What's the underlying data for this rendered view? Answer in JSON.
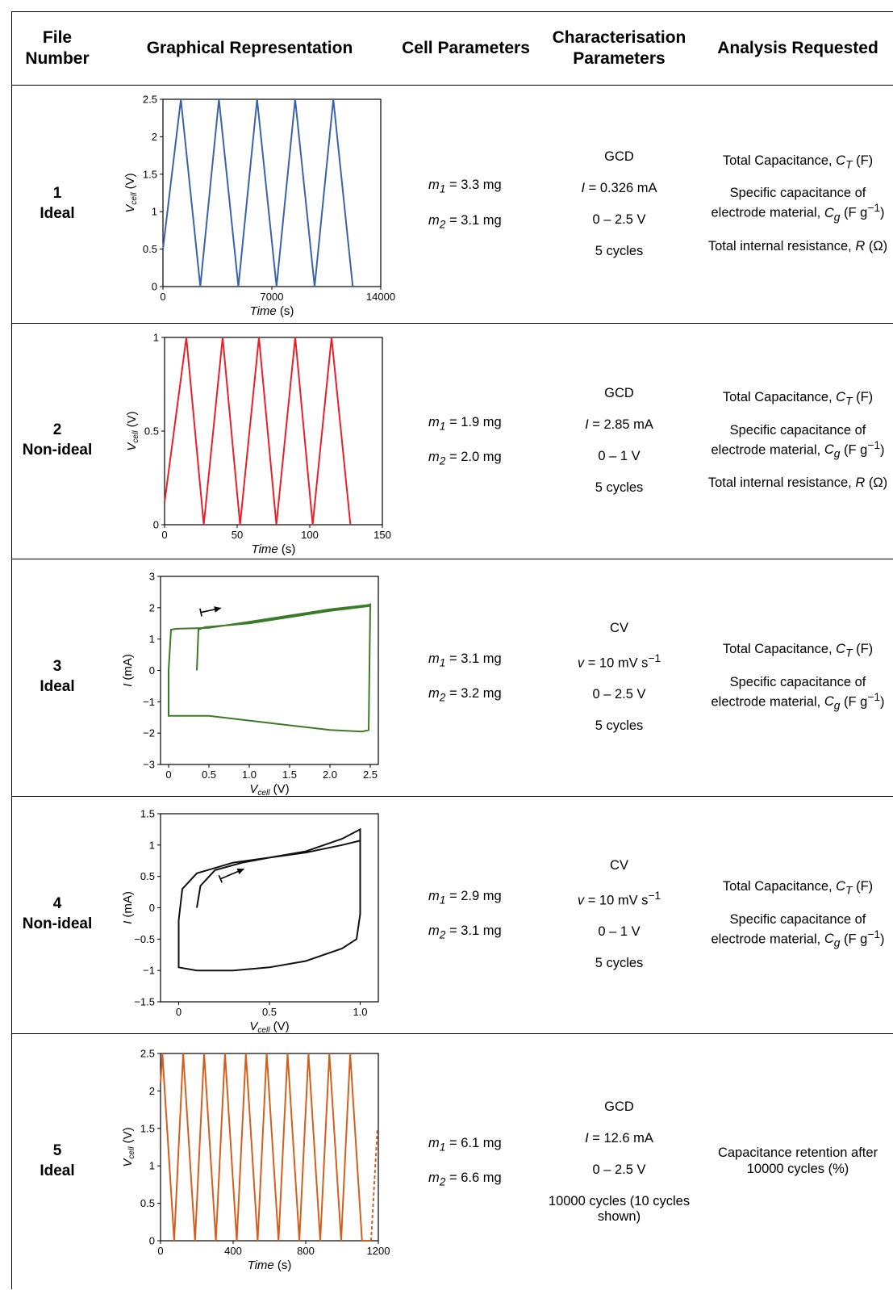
{
  "headers": {
    "file_number": "File Number",
    "graphical": "Graphical Representation",
    "cell": "Cell Parameters",
    "characterisation": "Characterisation Parameters",
    "analysis": "Analysis Requested"
  },
  "rows": [
    {
      "number": "1",
      "label": "Ideal",
      "cell": [
        "m1 = 3.3 mg",
        "m2 = 3.1 mg"
      ],
      "characterisation": [
        "GCD",
        "I = 0.326 mA",
        "0 – 2.5 V",
        "5 cycles"
      ],
      "analysis": [
        "Total Capacitance, CT (F)",
        "Specific capacitance of electrode material, Cg (F g−1)",
        "Total internal resistance, R (Ω)"
      ]
    },
    {
      "number": "2",
      "label": "Non-ideal",
      "cell": [
        "m1 = 1.9 mg",
        "m2 = 2.0 mg"
      ],
      "characterisation": [
        "GCD",
        "I = 2.85 mA",
        "0 – 1 V",
        "5 cycles"
      ],
      "analysis": [
        "Total Capacitance, CT (F)",
        "Specific capacitance of electrode material, Cg (F g−1)",
        "Total internal resistance, R (Ω)"
      ]
    },
    {
      "number": "3",
      "label": "Ideal",
      "cell": [
        "m1 = 3.1 mg",
        "m2 = 3.2 mg"
      ],
      "characterisation": [
        "CV",
        "v = 10 mV s−1",
        "0 – 2.5 V",
        "5 cycles"
      ],
      "analysis": [
        "Total Capacitance, CT (F)",
        "Specific capacitance of electrode material, Cg (F g−1)"
      ]
    },
    {
      "number": "4",
      "label": "Non-ideal",
      "cell": [
        "m1 = 2.9 mg",
        "m2 = 3.1 mg"
      ],
      "characterisation": [
        "CV",
        "v = 10 mV s−1",
        "0 – 1 V",
        "5 cycles"
      ],
      "analysis": [
        "Total Capacitance, CT (F)",
        "Specific capacitance of electrode material, Cg (F g−1)"
      ]
    },
    {
      "number": "5",
      "label": "Ideal",
      "cell": [
        "m1 = 6.1 mg",
        "m2 = 6.6 mg"
      ],
      "characterisation": [
        "GCD",
        "I = 12.6 mA",
        "0 – 2.5 V",
        "10000 cycles (10 cycles shown)"
      ],
      "analysis": [
        "Capacitance retention after 10000 cycles (%)"
      ]
    }
  ],
  "chart_data": [
    {
      "type": "line",
      "color": "#3a63a8",
      "xlabel": "Time (s)",
      "ylabel": "Vcell (V)",
      "xlim": [
        0,
        14000
      ],
      "ylim": [
        0,
        2.5
      ],
      "xticks": [
        "0",
        "7000",
        "14000"
      ],
      "yticks": [
        "0",
        "0.5",
        "1",
        "1.5",
        "2",
        "2.5"
      ],
      "series": [
        {
          "x": [
            0,
            1150,
            2400,
            3600,
            4850,
            6050,
            7300,
            8500,
            9750,
            10950,
            12200
          ],
          "y": [
            0.5,
            2.5,
            0,
            2.5,
            0,
            2.5,
            0,
            2.5,
            0,
            2.5,
            0
          ]
        }
      ]
    },
    {
      "type": "line",
      "color": "#e8202a",
      "xlabel": "Time (s)",
      "ylabel": "Vcell (V)",
      "xlim": [
        0,
        150
      ],
      "ylim": [
        0,
        1
      ],
      "xticks": [
        "0",
        "50",
        "100",
        "150"
      ],
      "yticks": [
        "0",
        "0.5",
        "1"
      ],
      "series": [
        {
          "x": [
            0,
            15,
            27,
            40,
            52,
            65,
            77,
            90,
            102,
            115,
            128
          ],
          "y": [
            0.12,
            1,
            0,
            1,
            0,
            1,
            0,
            1,
            0,
            1,
            0
          ]
        }
      ]
    },
    {
      "type": "line",
      "color": "#3d7a28",
      "xlabel": "Vcell (V)",
      "ylabel": "I (mA)",
      "xlim": [
        -0.1,
        2.6
      ],
      "ylim": [
        -3,
        3
      ],
      "xticks": [
        "0",
        "0.5",
        "1.0",
        "1.5",
        "2.0",
        "2.5"
      ],
      "yticks": [
        "−3",
        "−2",
        "−1",
        "0",
        "1",
        "2",
        "3"
      ],
      "series": [
        {
          "x": [
            0.35,
            0.37,
            0.45,
            1.0,
            1.5,
            2.0,
            2.48,
            2.5,
            2.48,
            2.4,
            2.0,
            1.5,
            1.0,
            0.5,
            0.0,
            0.0,
            0.03,
            0.1,
            0.5,
            1.0,
            1.5,
            2.0,
            2.45,
            2.5
          ],
          "y": [
            0,
            1.3,
            1.38,
            1.5,
            1.7,
            1.9,
            2.05,
            2.1,
            -1.9,
            -1.95,
            -1.9,
            -1.75,
            -1.6,
            -1.45,
            -1.45,
            0,
            1.3,
            1.33,
            1.36,
            1.55,
            1.75,
            1.95,
            2.08,
            2.1
          ]
        }
      ],
      "annotation": "scan direction arrow"
    },
    {
      "type": "line",
      "color": "#111111",
      "xlabel": "Vcell (V)",
      "ylabel": "I (mA)",
      "xlim": [
        -0.1,
        1.1
      ],
      "ylim": [
        -1.5,
        1.5
      ],
      "xticks": [
        "0",
        "0.5",
        "1.0"
      ],
      "yticks": [
        "−1.5",
        "−1",
        "−0.5",
        "0",
        "0.5",
        "1",
        "1.5"
      ],
      "series": [
        {
          "x": [
            0.1,
            0.12,
            0.2,
            0.35,
            0.5,
            0.7,
            0.9,
            1.0,
            1.0,
            0.98,
            0.9,
            0.7,
            0.5,
            0.3,
            0.1,
            0.0,
            0.0,
            0.02,
            0.1,
            0.3,
            0.5,
            0.7,
            0.9,
            1.0
          ],
          "y": [
            0,
            0.35,
            0.6,
            0.72,
            0.8,
            0.9,
            1.1,
            1.25,
            -0.1,
            -0.5,
            -0.65,
            -0.85,
            -0.95,
            -1.0,
            -1.0,
            -0.95,
            -0.2,
            0.3,
            0.55,
            0.72,
            0.8,
            0.88,
            1.0,
            1.07
          ]
        }
      ],
      "annotation": "scan direction arrow"
    },
    {
      "type": "line",
      "color": "#d35f1e",
      "xlabel": "Time (s)",
      "ylabel": "Vcell (V)",
      "xlim": [
        0,
        1200
      ],
      "ylim": [
        0,
        2.5
      ],
      "xticks": [
        "0",
        "400",
        "800",
        "1200"
      ],
      "yticks": [
        "0",
        "0.5",
        "1",
        "1.5",
        "2",
        "2.5"
      ],
      "series": [
        {
          "x": [
            0,
            10,
            75,
            125,
            190,
            240,
            305,
            355,
            420,
            470,
            535,
            585,
            650,
            700,
            765,
            815,
            880,
            930,
            995,
            1045,
            1110,
            1160
          ],
          "y": [
            2.1,
            2.5,
            0,
            2.5,
            0,
            2.5,
            0,
            2.5,
            0,
            2.5,
            0,
            2.5,
            0,
            2.5,
            0,
            2.5,
            0,
            2.5,
            0,
            2.5,
            0,
            0
          ]
        }
      ],
      "dashed_tail": {
        "x": [
          1160,
          1195
        ],
        "y": [
          0,
          1.5
        ]
      }
    }
  ]
}
